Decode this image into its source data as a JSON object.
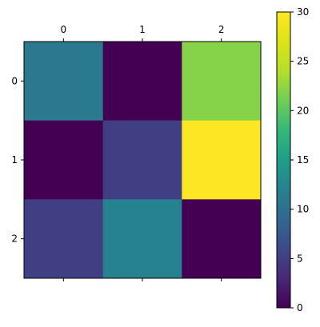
{
  "chart_data": {
    "type": "heatmap",
    "title": "",
    "xlabel": "",
    "ylabel": "",
    "x_categories": [
      "0",
      "1",
      "2"
    ],
    "y_categories": [
      "0",
      "1",
      "2"
    ],
    "values": [
      [
        11,
        0,
        22
      ],
      [
        0,
        5,
        30
      ],
      [
        5,
        12,
        0
      ]
    ],
    "colormap": "viridis",
    "vmin": 0,
    "vmax": 30,
    "colorbar": {
      "ticks": [
        0,
        5,
        10,
        15,
        20,
        25,
        30
      ],
      "tick_labels": [
        "0",
        "5",
        "10",
        "15",
        "20",
        "25",
        "30"
      ],
      "placement": "right"
    },
    "x_ticks_position": "top",
    "grid": false
  }
}
